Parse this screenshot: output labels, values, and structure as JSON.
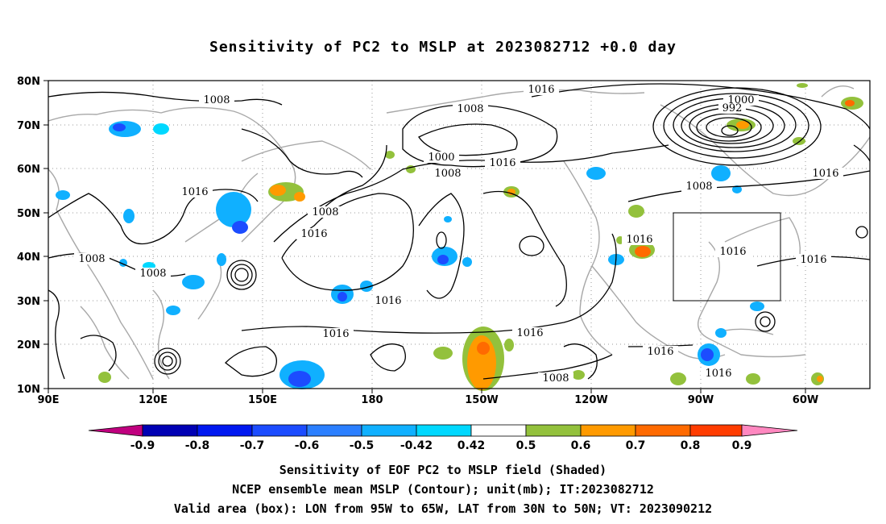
{
  "title": "Sensitivity of PC2 to MSLP at 2023082712 +0.0 day",
  "lat_labels": [
    "80N",
    "70N",
    "60N",
    "50N",
    "40N",
    "30N",
    "20N",
    "10N"
  ],
  "lon_labels": [
    "90E",
    "120E",
    "150E",
    "180",
    "150W",
    "120W",
    "90W",
    "60W"
  ],
  "contour_labels": [
    {
      "text": "1008",
      "id": "c1"
    },
    {
      "text": "1016",
      "id": "c2"
    },
    {
      "text": "1008",
      "id": "c3"
    },
    {
      "text": "1000",
      "id": "c4"
    },
    {
      "text": "992",
      "id": "c5"
    },
    {
      "text": "1000",
      "id": "c6"
    },
    {
      "text": "1008",
      "id": "c7"
    },
    {
      "text": "1016",
      "id": "c8"
    },
    {
      "text": "1016",
      "id": "c9"
    },
    {
      "text": "1008",
      "id": "c10"
    },
    {
      "text": "1016",
      "id": "c11"
    },
    {
      "text": "1008",
      "id": "c12"
    },
    {
      "text": "1008",
      "id": "c13"
    },
    {
      "text": "1016",
      "id": "c14"
    },
    {
      "text": "1016",
      "id": "c15"
    },
    {
      "text": "1016",
      "id": "c16"
    },
    {
      "text": "1016",
      "id": "c17"
    },
    {
      "text": "1016",
      "id": "c18"
    },
    {
      "text": "1016",
      "id": "c19"
    },
    {
      "text": "1016",
      "id": "c20"
    },
    {
      "text": "1008",
      "id": "c21"
    },
    {
      "text": "1016",
      "id": "c22"
    },
    {
      "text": "1008",
      "id": "c23"
    },
    {
      "text": "1016",
      "id": "c24"
    }
  ],
  "colorbar": {
    "colors": [
      "#c0007f",
      "#0000b4",
      "#0018f0",
      "#1c4cff",
      "#2b7fff",
      "#10b0ff",
      "#00d8ff",
      "#ffffff",
      "#93c13c",
      "#ff9a00",
      "#ff6a00",
      "#ff3c00",
      "#ff0000",
      "#ff88c0"
    ],
    "labels": [
      "-0.9",
      "-0.8",
      "-0.7",
      "-0.6",
      "-0.5",
      "-0.42",
      "0.42",
      "0.5",
      "0.6",
      "0.7",
      "0.8",
      "0.9"
    ]
  },
  "caption": {
    "line1": "Sensitivity of EOF PC2 to MSLP field (Shaded)",
    "line2": "NCEP ensemble mean MSLP (Contour); unit(mb); IT:2023082712",
    "line3": "Valid area (box): LON from 95W to 65W, LAT from 30N to 50N; VT: 2023090212"
  }
}
